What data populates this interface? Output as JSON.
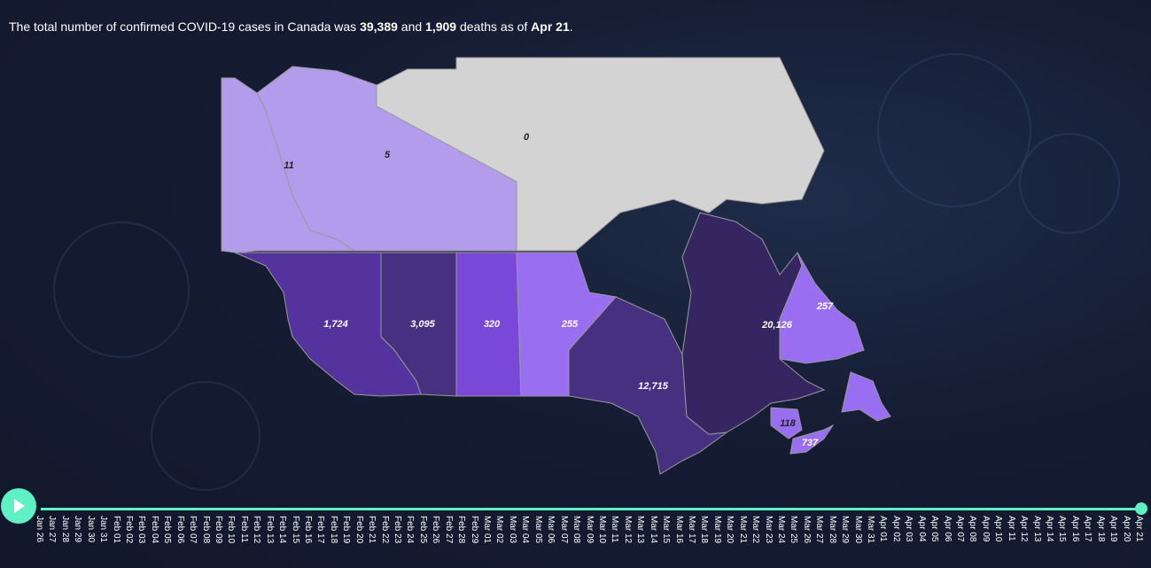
{
  "headline": {
    "prefix": "The total number of confirmed COVID-19 cases in Canada was ",
    "cases": "39,389",
    "middle": " and ",
    "deaths": "1,909",
    "suffix_before_date": " deaths as of ",
    "date": "Apr 21",
    "end": "."
  },
  "map": {
    "colors": {
      "no_data": "#d3d3d3",
      "light": "#b39ceb",
      "medium_light": "#9a6ef0",
      "medium": "#7a48d8",
      "dark": "#55339e",
      "darker": "#47307f",
      "darkest": "#352560"
    },
    "provinces": [
      {
        "name": "Yukon",
        "value": "11"
      },
      {
        "name": "Northwest Territories",
        "value": "5"
      },
      {
        "name": "Nunavut",
        "value": "0"
      },
      {
        "name": "British Columbia",
        "value": "1,724"
      },
      {
        "name": "Alberta",
        "value": "3,095"
      },
      {
        "name": "Saskatchewan",
        "value": "320"
      },
      {
        "name": "Manitoba",
        "value": "255"
      },
      {
        "name": "Ontario",
        "value": "12,715"
      },
      {
        "name": "Quebec",
        "value": "20,126"
      },
      {
        "name": "Newfoundland and Labrador",
        "value": "257"
      },
      {
        "name": "New Brunswick",
        "value": "118"
      },
      {
        "name": "Nova Scotia",
        "value": "737"
      }
    ]
  },
  "timeline": {
    "play_icon": "play-icon",
    "accent": "#5ff0c4",
    "current": "Apr 21",
    "dates": [
      "Jan 26",
      "Jan 27",
      "Jan 28",
      "Jan 29",
      "Jan 30",
      "Jan 31",
      "Feb 01",
      "Feb 02",
      "Feb 03",
      "Feb 04",
      "Feb 05",
      "Feb 06",
      "Feb 07",
      "Feb 08",
      "Feb 09",
      "Feb 10",
      "Feb 11",
      "Feb 12",
      "Feb 13",
      "Feb 14",
      "Feb 15",
      "Feb 16",
      "Feb 17",
      "Feb 18",
      "Feb 19",
      "Feb 20",
      "Feb 21",
      "Feb 22",
      "Feb 23",
      "Feb 24",
      "Feb 25",
      "Feb 26",
      "Feb 27",
      "Feb 28",
      "Feb 29",
      "Mar 01",
      "Mar 02",
      "Mar 03",
      "Mar 04",
      "Mar 05",
      "Mar 06",
      "Mar 07",
      "Mar 08",
      "Mar 09",
      "Mar 10",
      "Mar 11",
      "Mar 12",
      "Mar 13",
      "Mar 14",
      "Mar 15",
      "Mar 16",
      "Mar 17",
      "Mar 18",
      "Mar 19",
      "Mar 20",
      "Mar 21",
      "Mar 22",
      "Mar 23",
      "Mar 24",
      "Mar 25",
      "Mar 26",
      "Mar 27",
      "Mar 28",
      "Mar 29",
      "Mar 30",
      "Mar 31",
      "Apr 01",
      "Apr 02",
      "Apr 03",
      "Apr 04",
      "Apr 05",
      "Apr 06",
      "Apr 07",
      "Apr 08",
      "Apr 09",
      "Apr 10",
      "Apr 11",
      "Apr 12",
      "Apr 13",
      "Apr 14",
      "Apr 15",
      "Apr 16",
      "Apr 17",
      "Apr 18",
      "Apr 19",
      "Apr 20",
      "Apr 21"
    ]
  }
}
